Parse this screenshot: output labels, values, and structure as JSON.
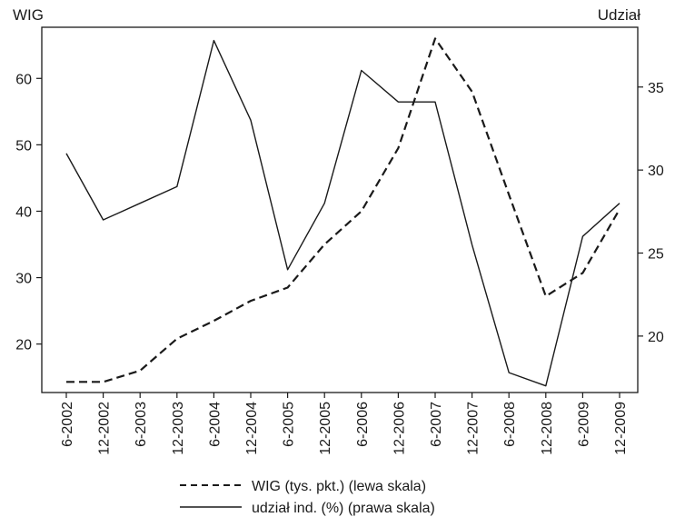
{
  "chart_data": {
    "type": "line",
    "left_axis_title": "WIG",
    "right_axis_title": "Udział",
    "categories": [
      "6-2002",
      "12-2002",
      "6-2003",
      "12-2003",
      "6-2004",
      "12-2004",
      "6-2005",
      "12-2005",
      "6-2006",
      "12-2006",
      "6-2007",
      "12-2007",
      "6-2008",
      "12-2008",
      "6-2009",
      "12-2009"
    ],
    "y_left": {
      "ticks": [
        20,
        30,
        40,
        50,
        60
      ],
      "range": [
        12.7,
        67.7
      ]
    },
    "y_right": {
      "ticks": [
        20,
        25,
        30,
        35
      ],
      "range": [
        16.6,
        38.6
      ]
    },
    "series": [
      {
        "name": "WIG (tys. pkt.) (lewa skala)",
        "axis": "left",
        "style": "dashed",
        "values": [
          14.3,
          14.3,
          16.0,
          20.8,
          23.5,
          26.5,
          28.5,
          35.0,
          40.0,
          49.5,
          66.0,
          58.0,
          42.5,
          27.2,
          30.7,
          40.3
        ]
      },
      {
        "name": "udział ind. (%) (prawa skala)",
        "axis": "right",
        "style": "solid",
        "values": [
          31.0,
          27.0,
          28.0,
          29.0,
          37.8,
          33.0,
          24.0,
          28.0,
          36.0,
          34.1,
          34.1,
          25.5,
          17.8,
          17.0,
          26.0,
          28.0
        ]
      }
    ]
  },
  "legend": {
    "items": [
      {
        "label": "WIG (tys. pkt.) (lewa skala)",
        "style": "dashed"
      },
      {
        "label": "udział ind. (%) (prawa skala)",
        "style": "solid"
      }
    ]
  }
}
